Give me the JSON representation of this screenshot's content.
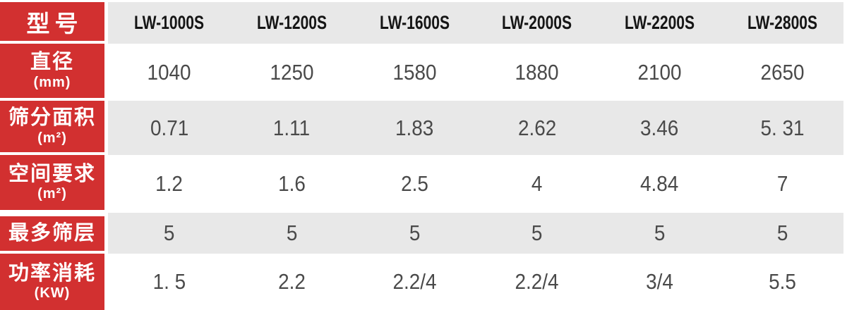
{
  "table": {
    "corner_label": "型号",
    "models": [
      "LW-1000S",
      "LW-1200S",
      "LW-1600S",
      "LW-2000S",
      "LW-2200S",
      "LW-2800S"
    ],
    "rows": [
      {
        "label": "直径",
        "unit": "(mm)",
        "values": [
          "1040",
          "1250",
          "1580",
          "1880",
          "2100",
          "2650"
        ]
      },
      {
        "label": "筛分面积",
        "unit": "(m²)",
        "values": [
          "0.71",
          "1.11",
          "1.83",
          "2.62",
          "3.46",
          "5. 31"
        ]
      },
      {
        "label": "空间要求",
        "unit": "(m²)",
        "values": [
          "1.2",
          "1.6",
          "2.5",
          "4",
          "4.84",
          "7"
        ]
      },
      {
        "label": "最多筛层",
        "unit": "",
        "values": [
          "5",
          "5",
          "5",
          "5",
          "5",
          "5"
        ]
      },
      {
        "label": "功率消耗",
        "unit": "(KW)",
        "values": [
          "1. 5",
          "2.2",
          "2.2/4",
          "2.2/4",
          "3/4",
          "5.5"
        ]
      }
    ],
    "colors": {
      "accent_red": "#d23030",
      "row_gray": "#e8e8e8",
      "header_text": "#ffffff",
      "model_text": "#151515",
      "value_text": "#4a4a4a",
      "background": "#ffffff"
    }
  }
}
